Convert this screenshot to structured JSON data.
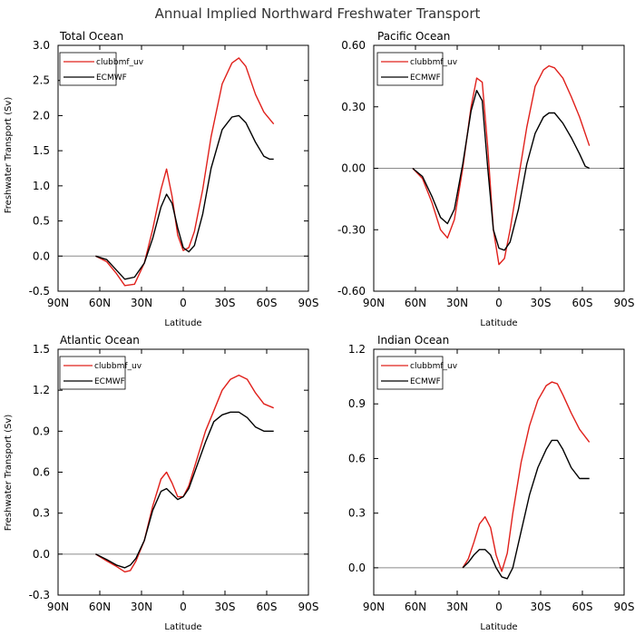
{
  "figure": {
    "title": "Annual Implied Northward Freshwater Transport"
  },
  "legend_labels": [
    "clubbmf_uv",
    "ECMWF"
  ],
  "series_colors": {
    "clubbmf_uv": "#e0201b",
    "ECMWF": "#000000"
  },
  "chart_data": [
    {
      "type": "line",
      "title": "Total Ocean",
      "xlabel": "Latitude",
      "ylabel": "Freshwater Transport (Sv)",
      "xlim": [
        90,
        -90
      ],
      "ylim": [
        -0.5,
        3.0
      ],
      "xticks": [
        90,
        60,
        30,
        0,
        -30,
        -60,
        -90
      ],
      "xtick_labels": [
        "90N",
        "60N",
        "30N",
        "0",
        "30S",
        "60S",
        "90S"
      ],
      "yticks": [
        -0.5,
        0.0,
        0.5,
        1.0,
        1.5,
        2.0,
        2.5,
        3.0
      ],
      "ytick_labels": [
        "-0.5",
        "0.0",
        "0.5",
        "1.0",
        "1.5",
        "2.0",
        "2.5",
        "3.0"
      ],
      "zero_line": true,
      "legend": "top-left",
      "series": [
        {
          "name": "clubbmf_uv",
          "x": [
            63,
            55,
            48,
            42,
            35,
            28,
            22,
            16,
            12,
            8,
            4,
            0,
            -4,
            -8,
            -14,
            -20,
            -28,
            -35,
            -40,
            -45,
            -52,
            -58,
            -65
          ],
          "y": [
            0.0,
            -0.08,
            -0.25,
            -0.42,
            -0.4,
            -0.1,
            0.38,
            0.95,
            1.24,
            0.85,
            0.3,
            0.08,
            0.12,
            0.35,
            0.95,
            1.7,
            2.45,
            2.75,
            2.82,
            2.7,
            2.3,
            2.05,
            1.88
          ]
        },
        {
          "name": "ECMWF",
          "x": [
            63,
            55,
            48,
            42,
            35,
            28,
            22,
            16,
            12,
            8,
            4,
            0,
            -4,
            -8,
            -14,
            -20,
            -28,
            -35,
            -40,
            -45,
            -52,
            -58,
            -62,
            -65
          ],
          "y": [
            0.0,
            -0.05,
            -0.2,
            -0.33,
            -0.3,
            -0.1,
            0.25,
            0.7,
            0.88,
            0.75,
            0.4,
            0.12,
            0.06,
            0.15,
            0.6,
            1.25,
            1.8,
            1.98,
            2.0,
            1.9,
            1.62,
            1.42,
            1.38,
            1.38
          ]
        }
      ]
    },
    {
      "type": "line",
      "title": "Pacific Ocean",
      "xlabel": "Latitude",
      "ylabel": "",
      "xlim": [
        90,
        -90
      ],
      "ylim": [
        -0.6,
        0.6
      ],
      "xticks": [
        90,
        60,
        30,
        0,
        -30,
        -60,
        -90
      ],
      "xtick_labels": [
        "90N",
        "60N",
        "30N",
        "0",
        "30S",
        "60S",
        "90S"
      ],
      "yticks": [
        -0.6,
        -0.3,
        0.0,
        0.3,
        0.6
      ],
      "ytick_labels": [
        "-0.60",
        "-0.30",
        "0.00",
        "0.30",
        "0.60"
      ],
      "zero_line": true,
      "legend": "top-left",
      "series": [
        {
          "name": "clubbmf_uv",
          "x": [
            62,
            55,
            48,
            42,
            37,
            32,
            26,
            20,
            16,
            12,
            8,
            4,
            0,
            -4,
            -8,
            -14,
            -20,
            -26,
            -32,
            -36,
            -40,
            -46,
            -52,
            -58,
            -65
          ],
          "y": [
            0.0,
            -0.05,
            -0.17,
            -0.3,
            -0.34,
            -0.25,
            0.0,
            0.3,
            0.44,
            0.42,
            0.1,
            -0.3,
            -0.47,
            -0.44,
            -0.3,
            -0.05,
            0.2,
            0.4,
            0.48,
            0.5,
            0.49,
            0.44,
            0.35,
            0.25,
            0.11
          ]
        },
        {
          "name": "ECMWF",
          "x": [
            62,
            55,
            48,
            42,
            37,
            32,
            26,
            20,
            16,
            12,
            8,
            4,
            0,
            -4,
            -8,
            -14,
            -20,
            -26,
            -32,
            -36,
            -40,
            -46,
            -52,
            -58,
            -62,
            -65
          ],
          "y": [
            0.0,
            -0.04,
            -0.14,
            -0.24,
            -0.27,
            -0.2,
            0.02,
            0.28,
            0.38,
            0.33,
            0.0,
            -0.3,
            -0.39,
            -0.4,
            -0.36,
            -0.2,
            0.02,
            0.17,
            0.25,
            0.27,
            0.27,
            0.22,
            0.15,
            0.07,
            0.01,
            0.0
          ]
        }
      ]
    },
    {
      "type": "line",
      "title": "Atlantic Ocean",
      "xlabel": "Latitude",
      "ylabel": "Freshwater Transport (Sv)",
      "xlim": [
        90,
        -90
      ],
      "ylim": [
        -0.3,
        1.5
      ],
      "xticks": [
        90,
        60,
        30,
        0,
        -30,
        -60,
        -90
      ],
      "xtick_labels": [
        "90N",
        "60N",
        "30N",
        "0",
        "30S",
        "60S",
        "90S"
      ],
      "yticks": [
        -0.3,
        0.0,
        0.3,
        0.6,
        0.9,
        1.2,
        1.5
      ],
      "ytick_labels": [
        "-0.3",
        "0.0",
        "0.3",
        "0.6",
        "0.9",
        "1.2",
        "1.5"
      ],
      "zero_line": true,
      "legend": "top-left",
      "series": [
        {
          "name": "clubbmf_uv",
          "x": [
            63,
            55,
            48,
            42,
            38,
            34,
            28,
            22,
            16,
            12,
            8,
            4,
            0,
            -4,
            -10,
            -16,
            -22,
            -28,
            -34,
            -40,
            -46,
            -52,
            -58,
            -65
          ],
          "y": [
            0.0,
            -0.05,
            -0.09,
            -0.13,
            -0.12,
            -0.05,
            0.1,
            0.35,
            0.55,
            0.6,
            0.52,
            0.42,
            0.42,
            0.5,
            0.7,
            0.9,
            1.05,
            1.2,
            1.28,
            1.31,
            1.28,
            1.18,
            1.1,
            1.07
          ]
        },
        {
          "name": "ECMWF",
          "x": [
            63,
            55,
            48,
            42,
            38,
            34,
            28,
            22,
            16,
            12,
            8,
            4,
            0,
            -4,
            -10,
            -16,
            -22,
            -28,
            -34,
            -40,
            -46,
            -52,
            -58,
            -65
          ],
          "y": [
            0.0,
            -0.04,
            -0.08,
            -0.1,
            -0.08,
            -0.03,
            0.1,
            0.32,
            0.46,
            0.48,
            0.44,
            0.4,
            0.42,
            0.48,
            0.65,
            0.82,
            0.97,
            1.02,
            1.04,
            1.04,
            1.0,
            0.93,
            0.9,
            0.9
          ]
        }
      ]
    },
    {
      "type": "line",
      "title": "Indian Ocean",
      "xlabel": "Latitude",
      "ylabel": "",
      "xlim": [
        90,
        -90
      ],
      "ylim": [
        -0.15,
        1.2
      ],
      "xticks": [
        90,
        60,
        30,
        0,
        -30,
        -60,
        -90
      ],
      "xtick_labels": [
        "90N",
        "60N",
        "30N",
        "0",
        "30S",
        "60S",
        "90S"
      ],
      "yticks": [
        0.0,
        0.3,
        0.6,
        0.9,
        1.2
      ],
      "ytick_labels": [
        "0.0",
        "0.3",
        "0.6",
        "0.9",
        "1.2"
      ],
      "zero_line": true,
      "legend": "top-left",
      "series": [
        {
          "name": "clubbmf_uv",
          "x": [
            26,
            22,
            18,
            14,
            10,
            6,
            2,
            -2,
            -6,
            -10,
            -16,
            -22,
            -28,
            -34,
            -38,
            -42,
            -46,
            -52,
            -58,
            -65
          ],
          "y": [
            0.0,
            0.05,
            0.14,
            0.24,
            0.28,
            0.22,
            0.07,
            -0.02,
            0.08,
            0.3,
            0.58,
            0.78,
            0.92,
            1.0,
            1.02,
            1.01,
            0.95,
            0.85,
            0.76,
            0.69
          ]
        },
        {
          "name": "ECMWF",
          "x": [
            26,
            22,
            18,
            14,
            10,
            6,
            2,
            -2,
            -6,
            -10,
            -16,
            -22,
            -28,
            -34,
            -38,
            -42,
            -46,
            -52,
            -58,
            -65
          ],
          "y": [
            0.0,
            0.03,
            0.07,
            0.1,
            0.1,
            0.07,
            0.0,
            -0.05,
            -0.06,
            0.0,
            0.2,
            0.4,
            0.55,
            0.65,
            0.7,
            0.7,
            0.65,
            0.55,
            0.49,
            0.49
          ]
        }
      ]
    }
  ]
}
